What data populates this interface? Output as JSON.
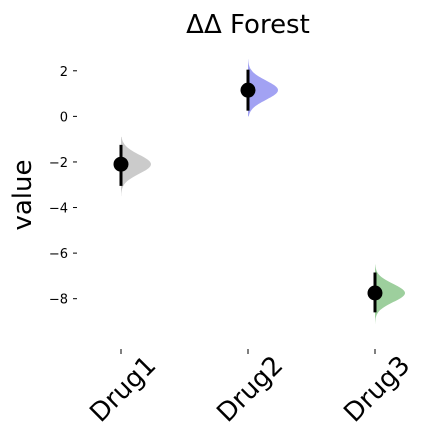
{
  "chart_data": {
    "type": "scatter",
    "title": "ΔΔ Forest",
    "xlabel": "",
    "ylabel": "value",
    "categories": [
      "Drug1",
      "Drug2",
      "Drug3"
    ],
    "yticks": [
      2,
      0,
      -2,
      -4,
      -6,
      -8
    ],
    "ylim": [
      -9.9,
      3.0
    ],
    "grid": false,
    "series": [
      {
        "category": "Drug1",
        "estimate": -2.1,
        "ci_low": -3.05,
        "ci_high": -1.25,
        "dist_min": -3.5,
        "dist_max": -0.9,
        "dist_sd": 0.42,
        "color": "#c8c8c8"
      },
      {
        "category": "Drug2",
        "estimate": 1.15,
        "ci_low": 0.25,
        "ci_high": 2.05,
        "dist_min": 0.0,
        "dist_max": 2.5,
        "dist_sd": 0.42,
        "color": "#9d9df2"
      },
      {
        "category": "Drug3",
        "estimate": -7.75,
        "ci_low": -8.6,
        "ci_high": -6.85,
        "dist_min": -9.1,
        "dist_max": -6.5,
        "dist_sd": 0.4,
        "color": "#98cc98"
      }
    ]
  }
}
